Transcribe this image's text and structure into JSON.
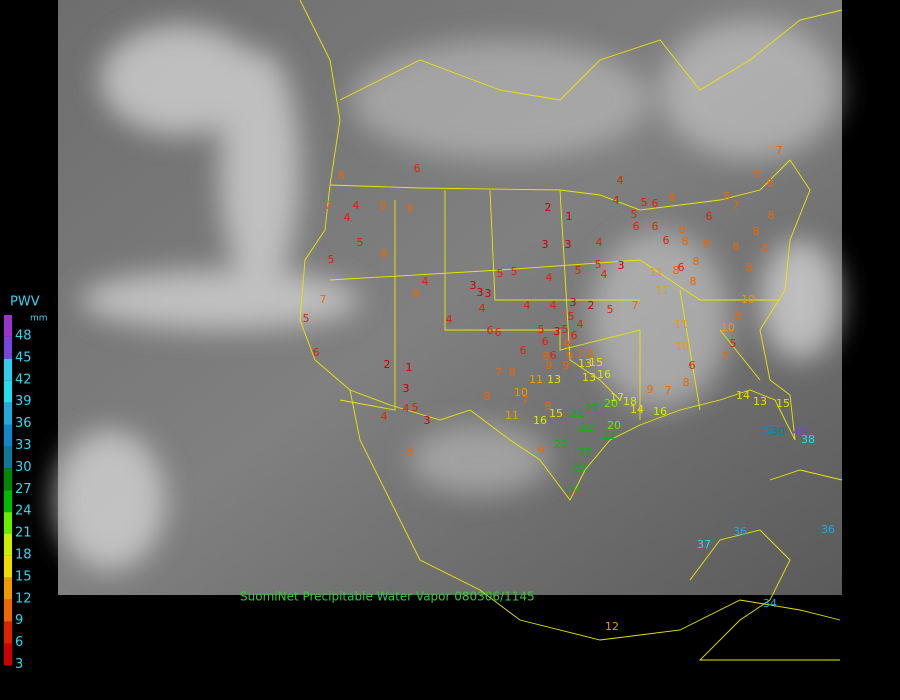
{
  "legend": {
    "title": "PWV",
    "unit": "mm",
    "items": [
      {
        "value": 48,
        "color": "#9933cc"
      },
      {
        "value": 45,
        "color": "#7744dd"
      },
      {
        "value": 42,
        "color": "#33ccee"
      },
      {
        "value": 39,
        "color": "#22ddee"
      },
      {
        "value": 36,
        "color": "#22aadd"
      },
      {
        "value": 33,
        "color": "#1188cc"
      },
      {
        "value": 30,
        "color": "#117799"
      },
      {
        "value": 27,
        "color": "#008800"
      },
      {
        "value": 24,
        "color": "#00bb00"
      },
      {
        "value": 21,
        "color": "#66ee00"
      },
      {
        "value": 18,
        "color": "#ccee00"
      },
      {
        "value": 15,
        "color": "#eedd00"
      },
      {
        "value": 12,
        "color": "#ee9900"
      },
      {
        "value": 9,
        "color": "#ee6600"
      },
      {
        "value": 6,
        "color": "#dd2200"
      },
      {
        "value": 3,
        "color": "#cc0000"
      }
    ]
  },
  "caption": "SuomiNet Precipitable Water Vapor 080306/1145",
  "stations": [
    6,
    8,
    7,
    4,
    4,
    8,
    8,
    5,
    8,
    5,
    7,
    5,
    6,
    2,
    1,
    3,
    3,
    4,
    4,
    4,
    5,
    5,
    6,
    8,
    6,
    6,
    6,
    8,
    8,
    6,
    8,
    7,
    8,
    8,
    7,
    8,
    8,
    8,
    8,
    8,
    8,
    8,
    6,
    11,
    11,
    8,
    8,
    4,
    8,
    3,
    3,
    3,
    4,
    5,
    5,
    6,
    4,
    5,
    5,
    4,
    3,
    4,
    4,
    3,
    2,
    5,
    7,
    5,
    4,
    5,
    3,
    5,
    6,
    6,
    6,
    9,
    8,
    6,
    9,
    7,
    8,
    9,
    9,
    13,
    15,
    16,
    7,
    8,
    11,
    13,
    13,
    4,
    6,
    1,
    2,
    3,
    4,
    5,
    4,
    3,
    8,
    10,
    7,
    8,
    11,
    16,
    15,
    22,
    22,
    22,
    20,
    20,
    17,
    18,
    9,
    14,
    16,
    7,
    8,
    6,
    10,
    11,
    7,
    10,
    8,
    10,
    5,
    14,
    13,
    15,
    32,
    30,
    45,
    38,
    22,
    22,
    22,
    23,
    24,
    9,
    8,
    37,
    36,
    36,
    34,
    12
  ]
}
